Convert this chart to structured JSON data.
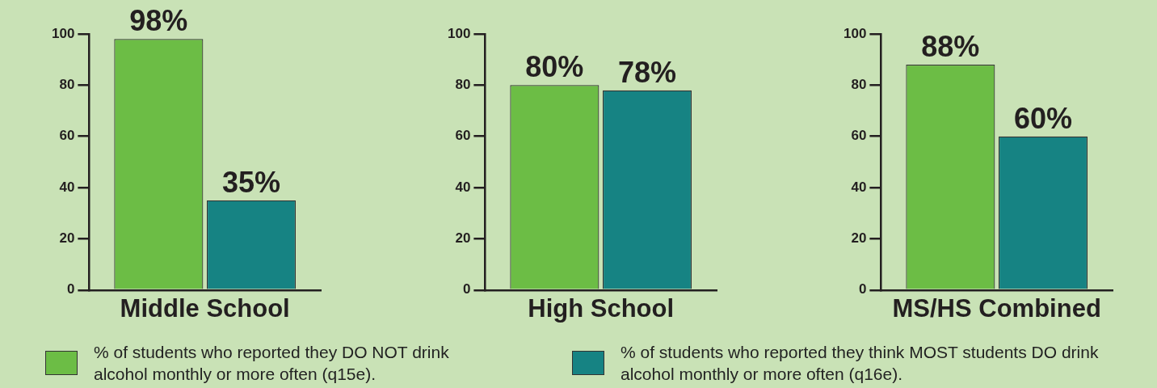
{
  "chart_data": [
    {
      "type": "bar",
      "categories": [
        "Middle School"
      ],
      "ylim": [
        0,
        100
      ],
      "yticks": [
        0,
        20,
        40,
        60,
        80,
        100
      ],
      "grid": false,
      "legend": "bottom",
      "data_labels": true,
      "series": [
        {
          "name": "% of students who reported they DO NOT drink alcohol monthly or more often (q15e).",
          "color": "#6cbd45",
          "values": [
            98
          ],
          "value_labels": [
            "98%"
          ]
        },
        {
          "name": "% of students who reported they think MOST students DO drink alcohol monthly or more often (q16e).",
          "color": "#168383",
          "values": [
            35
          ],
          "value_labels": [
            "35%"
          ]
        }
      ]
    },
    {
      "type": "bar",
      "categories": [
        "High School"
      ],
      "ylim": [
        0,
        100
      ],
      "yticks": [
        0,
        20,
        40,
        60,
        80,
        100
      ],
      "grid": false,
      "data_labels": true,
      "series": [
        {
          "color": "#6cbd45",
          "values": [
            80
          ],
          "value_labels": [
            "80%"
          ]
        },
        {
          "color": "#168383",
          "values": [
            78
          ],
          "value_labels": [
            "78%"
          ]
        }
      ]
    },
    {
      "type": "bar",
      "categories": [
        "MS/HS Combined"
      ],
      "ylim": [
        0,
        100
      ],
      "yticks": [
        0,
        20,
        40,
        60,
        80,
        100
      ],
      "grid": false,
      "data_labels": true,
      "series": [
        {
          "color": "#6cbd45",
          "values": [
            88
          ],
          "value_labels": [
            "88%"
          ]
        },
        {
          "color": "#168383",
          "values": [
            60
          ],
          "value_labels": [
            "60%"
          ]
        }
      ]
    }
  ]
}
